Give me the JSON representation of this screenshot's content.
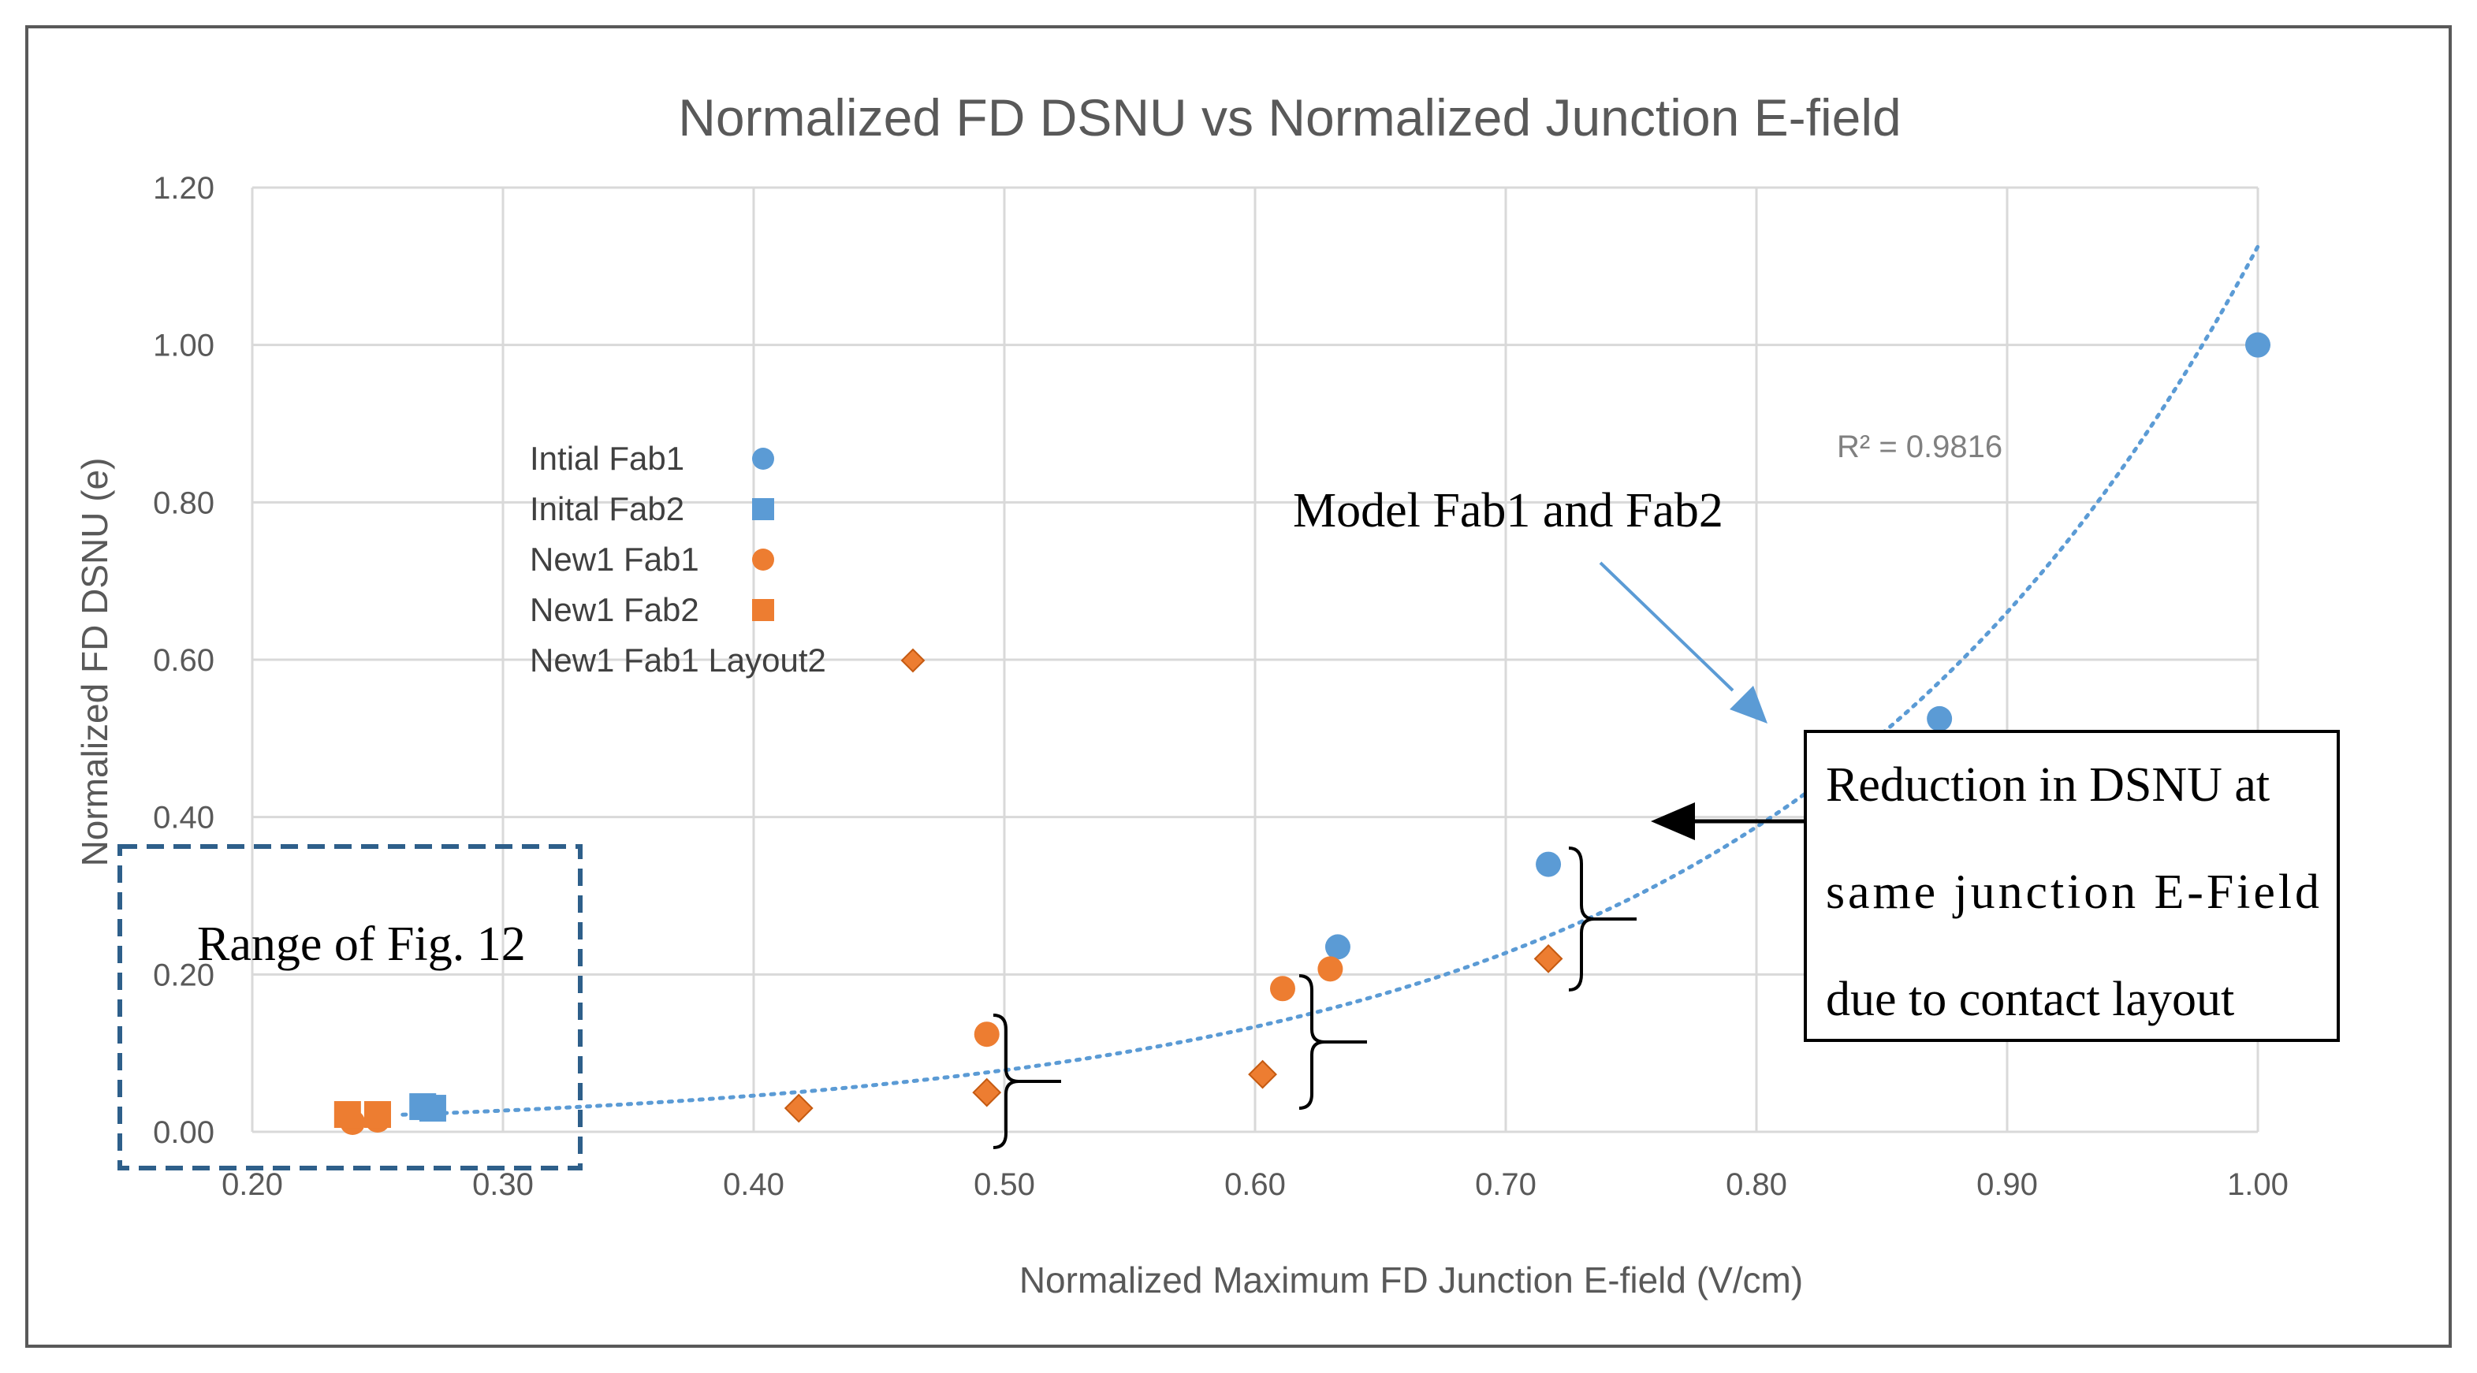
{
  "colors": {
    "blue": "#5b9bd5",
    "orange": "#ed7d31",
    "grid": "#d9d9d9",
    "range_box": "#2e5f8a",
    "callout_arrow": "#5b9bd5"
  },
  "chart_data": {
    "type": "scatter",
    "title": "Normalized FD DSNU vs Normalized Junction E-field",
    "xlabel": "Normalized Maximum FD Junction E-field (V/cm)",
    "ylabel": "Normalized FD DSNU (e)",
    "xlim": [
      0.2,
      1.0
    ],
    "ylim": [
      0.0,
      1.2
    ],
    "x_ticks": [
      "0.20",
      "0.30",
      "0.40",
      "0.50",
      "0.60",
      "0.70",
      "0.80",
      "0.90",
      "1.00"
    ],
    "y_ticks": [
      "0.00",
      "0.20",
      "0.40",
      "0.60",
      "0.80",
      "1.00",
      "1.20"
    ],
    "grid": true,
    "legend_position": "upper-left",
    "series": [
      {
        "name": "Intial Fab1",
        "marker": "circle",
        "color": "#5b9bd5",
        "points": [
          [
            0.633,
            0.235
          ],
          [
            0.717,
            0.34
          ],
          [
            0.873,
            0.525
          ],
          [
            1.0,
            1.0
          ]
        ]
      },
      {
        "name": "Inital Fab2",
        "marker": "square",
        "color": "#5b9bd5",
        "points": [
          [
            0.268,
            0.032
          ],
          [
            0.272,
            0.03
          ]
        ]
      },
      {
        "name": "New1 Fab1",
        "marker": "circle",
        "color": "#ed7d31",
        "points": [
          [
            0.493,
            0.124
          ],
          [
            0.611,
            0.182
          ],
          [
            0.63,
            0.207
          ],
          [
            0.24,
            0.012
          ],
          [
            0.25,
            0.015
          ]
        ]
      },
      {
        "name": "New1 Fab2",
        "marker": "square",
        "color": "#ed7d31",
        "points": [
          [
            0.238,
            0.022
          ],
          [
            0.25,
            0.022
          ]
        ]
      },
      {
        "name": "New1 Fab1 Layout2",
        "marker": "diamond",
        "color": "#ed7d31",
        "points": [
          [
            0.418,
            0.03
          ],
          [
            0.493,
            0.05
          ],
          [
            0.603,
            0.073
          ],
          [
            0.717,
            0.22
          ]
        ]
      }
    ],
    "trendline": {
      "type": "exponential",
      "a": 0.00545,
      "b": 5.33,
      "x_range": [
        0.26,
        1.0
      ],
      "color": "#5b9bd5",
      "style": "dotted",
      "label": "R² = 0.9816"
    },
    "annotations": {
      "model_label": "Model Fab1 and Fab2",
      "reduction_lines": [
        "Reduction in DSNU at",
        "same junction E-Field",
        "due to contact layout"
      ],
      "range_label": "Range of Fig. 12"
    }
  }
}
